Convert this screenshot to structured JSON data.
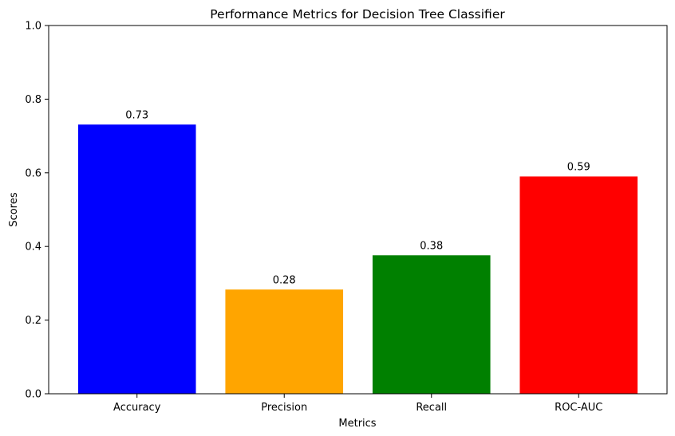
{
  "chart_data": {
    "type": "bar",
    "title": "Performance Metrics for Decision Tree Classifier",
    "xlabel": "Metrics",
    "ylabel": "Scores",
    "categories": [
      "Accuracy",
      "Precision",
      "Recall",
      "ROC-AUC"
    ],
    "values": [
      0.731,
      0.283,
      0.376,
      0.59
    ],
    "value_labels": [
      "0.73",
      "0.28",
      "0.38",
      "0.59"
    ],
    "colors": [
      "#0000ff",
      "#ffa500",
      "#008000",
      "#ff0000"
    ],
    "ylim": [
      0,
      1
    ],
    "yticks": [
      0.0,
      0.2,
      0.4,
      0.6,
      0.8,
      1.0
    ],
    "ytick_labels": [
      "0.0",
      "0.2",
      "0.4",
      "0.6",
      "0.8",
      "1.0"
    ],
    "grid": false,
    "legend": false
  }
}
